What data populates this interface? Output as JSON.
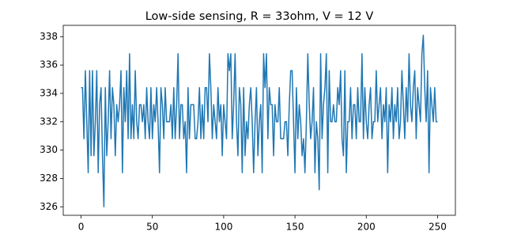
{
  "chart_data": {
    "type": "line",
    "title": "Low-side sensing, R = 33ohm, V = 12 V",
    "color": "#1f77b4",
    "x": [
      0,
      1,
      2,
      3,
      4,
      5,
      6,
      7,
      8,
      9,
      10,
      11,
      12,
      13,
      14,
      15,
      16,
      17,
      18,
      19,
      20,
      21,
      22,
      23,
      24,
      25,
      26,
      27,
      28,
      29,
      30,
      31,
      32,
      33,
      34,
      35,
      36,
      37,
      38,
      39,
      40,
      41,
      42,
      43,
      44,
      45,
      46,
      47,
      48,
      49,
      50,
      51,
      52,
      53,
      54,
      55,
      56,
      57,
      58,
      59,
      60,
      61,
      62,
      63,
      64,
      65,
      66,
      67,
      68,
      69,
      70,
      71,
      72,
      73,
      74,
      75,
      76,
      77,
      78,
      79,
      80,
      81,
      82,
      83,
      84,
      85,
      86,
      87,
      88,
      89,
      90,
      91,
      92,
      93,
      94,
      95,
      96,
      97,
      98,
      99,
      100,
      101,
      102,
      103,
      104,
      105,
      106,
      107,
      108,
      109,
      110,
      111,
      112,
      113,
      114,
      115,
      116,
      117,
      118,
      119,
      120,
      121,
      122,
      123,
      124,
      125,
      126,
      127,
      128,
      129,
      130,
      131,
      132,
      133,
      134,
      135,
      136,
      137,
      138,
      139,
      140,
      141,
      142,
      143,
      144,
      145,
      146,
      147,
      148,
      149,
      150,
      151,
      152,
      153,
      154,
      155,
      156,
      157,
      158,
      159,
      160,
      161,
      162,
      163,
      164,
      165,
      166,
      167,
      168,
      169,
      170,
      171,
      172,
      173,
      174,
      175,
      176,
      177,
      178,
      179,
      180,
      181,
      182,
      183,
      184,
      185,
      186,
      187,
      188,
      189,
      190,
      191,
      192,
      193,
      194,
      195,
      196,
      197,
      198,
      199,
      200,
      201,
      202,
      203,
      204,
      205,
      206,
      207,
      208,
      209,
      210,
      211,
      212,
      213,
      214,
      215,
      216,
      217,
      218,
      219,
      220,
      221,
      222,
      223,
      224,
      225,
      226,
      227,
      228,
      229,
      230,
      231,
      232,
      233,
      234,
      235,
      236,
      237,
      238,
      239,
      240,
      241,
      242,
      243,
      244,
      245,
      246,
      247,
      248,
      249,
      250
    ],
    "values": [
      334.4,
      334.4,
      330.8,
      335.6,
      332.0,
      328.4,
      335.6,
      329.6,
      335.6,
      329.6,
      332.0,
      335.6,
      328.4,
      333.2,
      334.4,
      329.6,
      326.0,
      334.4,
      329.6,
      332.0,
      335.6,
      330.8,
      334.4,
      333.2,
      329.6,
      333.2,
      332.0,
      333.2,
      335.6,
      328.4,
      334.4,
      332.0,
      335.6,
      330.8,
      336.8,
      330.8,
      333.2,
      330.8,
      335.6,
      332.0,
      330.8,
      333.2,
      333.2,
      332.0,
      333.2,
      330.8,
      334.4,
      332.0,
      330.8,
      334.4,
      330.8,
      333.2,
      332.0,
      334.4,
      332.0,
      328.4,
      334.4,
      333.2,
      330.8,
      334.4,
      332.0,
      332.0,
      332.0,
      333.2,
      330.8,
      334.4,
      330.8,
      333.2,
      336.8,
      330.8,
      333.2,
      333.2,
      330.8,
      332.0,
      328.4,
      334.4,
      330.8,
      333.2,
      333.2,
      333.2,
      330.8,
      330.8,
      332.0,
      334.4,
      330.8,
      333.2,
      330.8,
      334.4,
      334.4,
      332.0,
      336.8,
      334.4,
      330.8,
      333.2,
      332.0,
      330.8,
      334.4,
      332.0,
      333.2,
      329.6,
      333.2,
      332.0,
      330.8,
      336.8,
      335.6,
      336.8,
      330.8,
      333.2,
      336.8,
      332.0,
      329.6,
      334.4,
      333.2,
      328.4,
      334.4,
      329.6,
      332.0,
      330.8,
      333.2,
      334.4,
      332.0,
      328.4,
      332.0,
      334.4,
      329.6,
      332.0,
      333.2,
      328.4,
      336.8,
      334.4,
      336.8,
      330.8,
      334.4,
      333.2,
      333.2,
      329.6,
      333.2,
      332.0,
      332.0,
      334.4,
      330.8,
      330.8,
      330.8,
      332.0,
      332.0,
      329.6,
      333.2,
      335.6,
      335.6,
      332.0,
      328.4,
      334.4,
      330.8,
      333.2,
      332.0,
      329.6,
      330.8,
      328.4,
      332.0,
      336.8,
      333.2,
      330.8,
      332.0,
      334.4,
      328.4,
      332.0,
      330.8,
      327.2,
      336.8,
      330.8,
      333.2,
      334.4,
      336.8,
      328.4,
      335.6,
      332.0,
      332.0,
      333.2,
      332.0,
      332.0,
      334.4,
      333.2,
      335.6,
      330.8,
      329.6,
      335.6,
      328.4,
      332.0,
      332.0,
      334.4,
      330.8,
      333.2,
      333.2,
      330.8,
      334.4,
      332.0,
      332.0,
      336.8,
      330.8,
      334.4,
      332.0,
      330.8,
      333.2,
      334.4,
      330.8,
      332.0,
      332.0,
      335.6,
      332.0,
      333.2,
      334.4,
      330.8,
      333.2,
      332.0,
      334.4,
      328.4,
      333.2,
      332.0,
      334.4,
      330.8,
      333.2,
      332.0,
      334.4,
      330.8,
      332.0,
      335.6,
      333.2,
      330.8,
      334.4,
      332.0,
      336.8,
      333.2,
      332.0,
      334.4,
      335.6,
      330.8,
      334.4,
      333.2,
      332.0,
      336.8,
      338.1,
      334.4,
      332.0,
      335.6,
      328.4,
      334.4,
      333.2,
      332.0,
      334.4,
      332.0,
      332.0
    ],
    "xlim": [
      -12.5,
      262.5
    ],
    "xticks": [
      0,
      50,
      100,
      150,
      200,
      250
    ],
    "ylim": [
      325.4,
      338.8
    ],
    "yticks": [
      326,
      328,
      330,
      332,
      334,
      336,
      338
    ]
  }
}
